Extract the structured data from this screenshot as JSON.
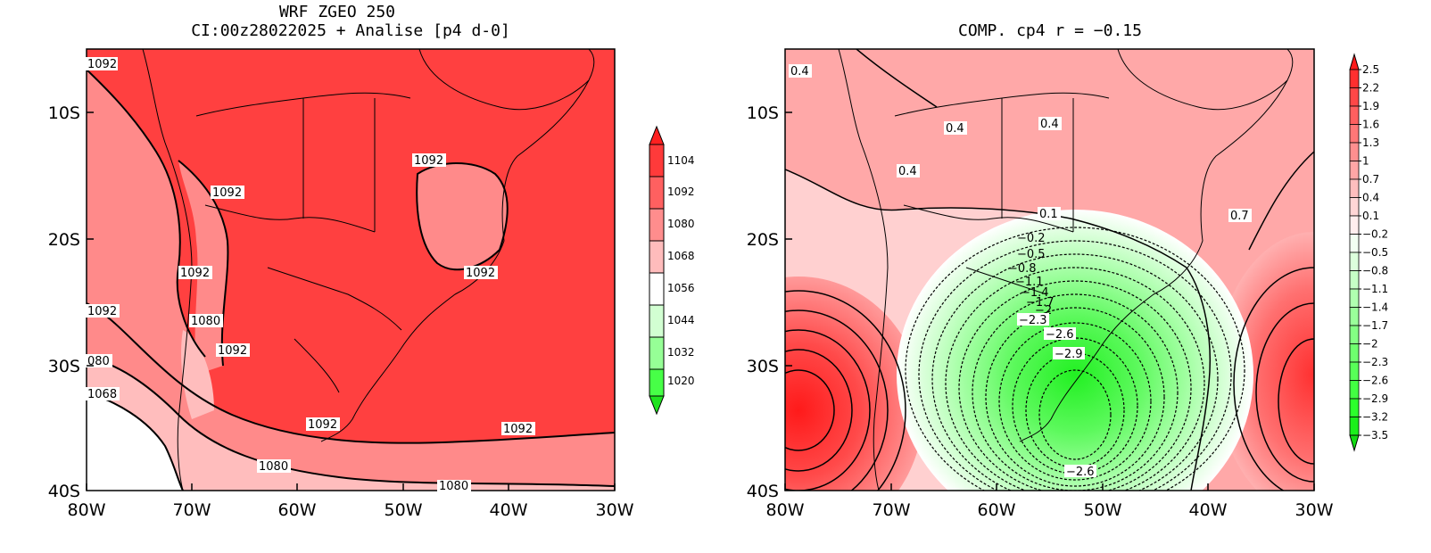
{
  "left_panel": {
    "title_line1": "WRF ZGEO 250",
    "title_line2": "CI:00z28022025 + Analise  [p4 d-0]",
    "lat_ticks": [
      "10S",
      "20S",
      "30S",
      "40S"
    ],
    "lon_ticks": [
      "80W",
      "70W",
      "60W",
      "50W",
      "40W",
      "30W"
    ],
    "contour_labels": [
      "1092",
      "1092",
      "1092",
      "1092",
      "1092",
      "1092",
      "1080",
      "1092",
      "080",
      "1068",
      "1092",
      "1092",
      "1080",
      "1080"
    ],
    "colorbar": {
      "labels": [
        "1104",
        "1092",
        "1080",
        "1068",
        "1056",
        "1044",
        "1032",
        "1020"
      ],
      "colors": [
        "#ff3a3a",
        "#ff6060",
        "#ff8d8d",
        "#ffbcbc",
        "#ffffff",
        "#d2ffd2",
        "#96ff96",
        "#47ff47",
        "#1fe31f"
      ]
    }
  },
  "right_panel": {
    "title": "COMP. cp4  r = −0.15",
    "lat_ticks": [
      "10S",
      "20S",
      "30S",
      "40S"
    ],
    "lon_ticks": [
      "80W",
      "70W",
      "60W",
      "50W",
      "40W",
      "30W"
    ],
    "contour_labels": [
      "0.4",
      "0.4",
      "0.4",
      "0.4",
      "0.7",
      "0.1",
      "−0.2",
      "−0.5",
      "−0.8",
      "−1.1",
      "−1.4",
      "−1.7",
      "−2",
      "−2.3",
      "−2.6",
      "−2.9",
      "−2.6"
    ],
    "colorbar": {
      "labels": [
        "2.5",
        "2.2",
        "1.9",
        "1.6",
        "1.3",
        "1",
        "0.7",
        "0.4",
        "0.1",
        "−0.2",
        "−0.5",
        "−0.8",
        "−1.1",
        "−1.4",
        "−1.7",
        "−2",
        "−2.3",
        "−2.6",
        "−2.9",
        "−3.2",
        "−3.5"
      ],
      "colors": [
        "#ff1a1a",
        "#ff2f2f",
        "#ff4747",
        "#ff5f5f",
        "#ff7777",
        "#ff8f8f",
        "#ffa6a6",
        "#ffbebe",
        "#ffd6d6",
        "#ffeeee",
        "#f2fff2",
        "#dcffdc",
        "#c6ffc6",
        "#b0ffb0",
        "#9aff9a",
        "#84ff84",
        "#6eff6e",
        "#58ff58",
        "#42ff42",
        "#2cff2c",
        "#1af01a",
        "#12dc12"
      ]
    }
  }
}
